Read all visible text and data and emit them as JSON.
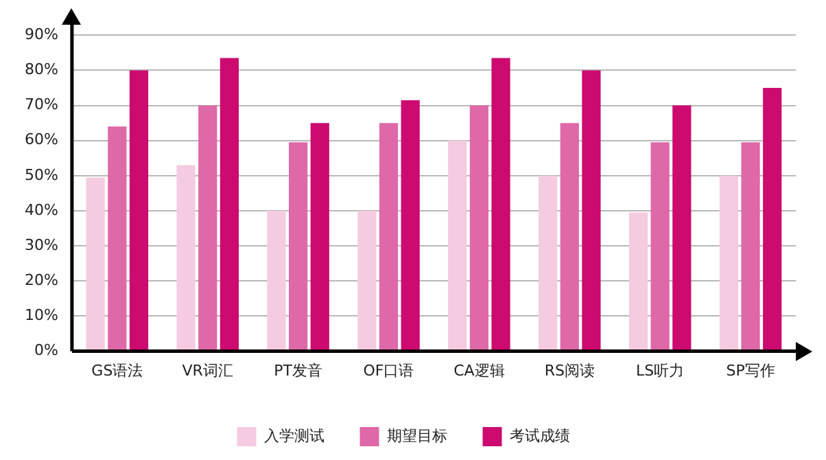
{
  "chart_data": {
    "type": "bar",
    "categories": [
      "GS语法",
      "VR词汇",
      "PT发音",
      "OF口语",
      "CA逻辑",
      "RS阅读",
      "LS听力",
      "SP写作"
    ],
    "series": [
      {
        "name": "入学测试",
        "color": "#f4cbe0",
        "values": [
          49.5,
          53,
          40,
          40,
          60,
          50,
          39.5,
          50
        ]
      },
      {
        "name": "期望目标",
        "color": "#de68a8",
        "values": [
          64,
          70,
          59.5,
          65,
          70,
          65,
          59.5,
          59.5
        ]
      },
      {
        "name": "考试成绩",
        "color": "#cc0a70",
        "values": [
          80,
          83.5,
          65,
          71.5,
          83.5,
          80,
          70,
          75
        ]
      }
    ],
    "ylim": [
      0,
      93
    ],
    "yticks": [
      {
        "value": 0,
        "label": "0%"
      },
      {
        "value": 10,
        "label": "10%"
      },
      {
        "value": 20,
        "label": "20%"
      },
      {
        "value": 30,
        "label": "30%"
      },
      {
        "value": 40,
        "label": "40%"
      },
      {
        "value": 50,
        "label": "50%"
      },
      {
        "value": 60,
        "label": "60%"
      },
      {
        "value": 70,
        "label": "70%"
      },
      {
        "value": 80,
        "label": "80%"
      },
      {
        "value": 90,
        "label": "90%"
      }
    ],
    "grid": "y",
    "legend": "bottom"
  }
}
